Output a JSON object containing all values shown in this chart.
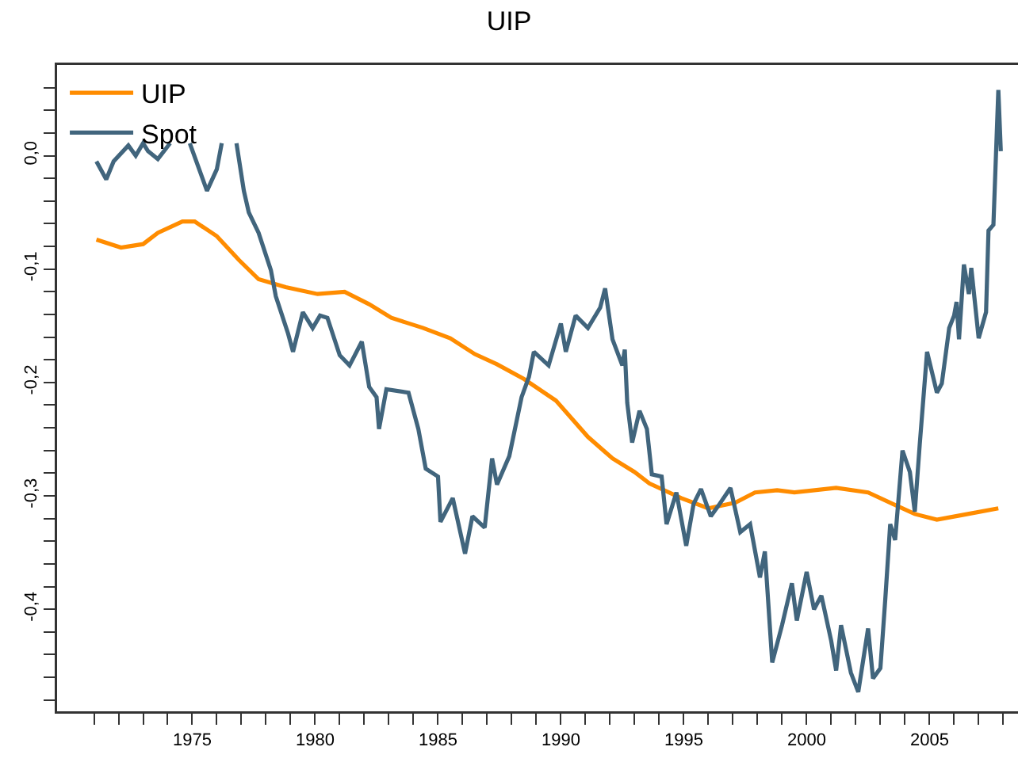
{
  "chart_data": {
    "type": "line",
    "title": "UIP",
    "xlim": [
      1969.5,
      2008.6
    ],
    "xticks": [
      {
        "value": 1971,
        "label": null
      },
      {
        "value": 1972,
        "label": null
      },
      {
        "value": 1973,
        "label": null
      },
      {
        "value": 1974,
        "label": null
      },
      1975,
      {
        "value": 1976,
        "label": null
      },
      {
        "value": 1977,
        "label": null
      },
      {
        "value": 1978,
        "label": null
      },
      {
        "value": 1979,
        "label": null
      },
      1980,
      {
        "value": 1981,
        "label": null
      },
      {
        "value": 1982,
        "label": null
      },
      {
        "value": 1983,
        "label": null
      },
      {
        "value": 1984,
        "label": null
      },
      1985,
      {
        "value": 1986,
        "label": null
      },
      {
        "value": 1987,
        "label": null
      },
      {
        "value": 1988,
        "label": null
      },
      {
        "value": 1989,
        "label": null
      },
      1990,
      {
        "value": 1991,
        "label": null
      },
      {
        "value": 1992,
        "label": null
      },
      {
        "value": 1993,
        "label": null
      },
      {
        "value": 1994,
        "label": null
      },
      1995,
      {
        "value": 1996,
        "label": null
      },
      {
        "value": 1997,
        "label": null
      },
      {
        "value": 1998,
        "label": null
      },
      {
        "value": 1999,
        "label": null
      },
      2000,
      {
        "value": 2001,
        "label": null
      },
      {
        "value": 2002,
        "label": null
      },
      {
        "value": 2003,
        "label": null
      },
      {
        "value": 2004,
        "label": null
      },
      2005,
      {
        "value": 2006,
        "label": null
      },
      {
        "value": 2007,
        "label": null
      },
      {
        "value": 2008,
        "label": null
      }
    ],
    "ylim": [
      -0.49,
      0.08
    ],
    "yticks": [
      {
        "value": -0.48,
        "label": null
      },
      {
        "value": -0.46,
        "label": null
      },
      {
        "value": -0.44,
        "label": null
      },
      {
        "value": -0.42,
        "label": null
      },
      {
        "value": -0.4,
        "label": "-0,4"
      },
      {
        "value": -0.38,
        "label": null
      },
      {
        "value": -0.36,
        "label": null
      },
      {
        "value": -0.34,
        "label": null
      },
      {
        "value": -0.32,
        "label": null
      },
      {
        "value": -0.3,
        "label": "-0,3"
      },
      {
        "value": -0.28,
        "label": null
      },
      {
        "value": -0.26,
        "label": null
      },
      {
        "value": -0.24,
        "label": null
      },
      {
        "value": -0.22,
        "label": null
      },
      {
        "value": -0.2,
        "label": "-0,2"
      },
      {
        "value": -0.18,
        "label": null
      },
      {
        "value": -0.16,
        "label": null
      },
      {
        "value": -0.14,
        "label": null
      },
      {
        "value": -0.12,
        "label": null
      },
      {
        "value": -0.1,
        "label": "-0,1"
      },
      {
        "value": -0.08,
        "label": null
      },
      {
        "value": -0.06,
        "label": null
      },
      {
        "value": -0.04,
        "label": null
      },
      {
        "value": -0.02,
        "label": null
      },
      {
        "value": 0,
        "label": "0,0"
      },
      {
        "value": 0.02,
        "label": null
      },
      {
        "value": 0.04,
        "label": null
      },
      {
        "value": 0.06,
        "label": null
      }
    ],
    "grid": false,
    "legend": "top left",
    "marker": "none",
    "line_style": "solid",
    "series": [
      {
        "name": "UIP",
        "color": "#ff8c00",
        "x": [
          1971.1,
          1972.1,
          1973.0,
          1973.6,
          1974.6,
          1975.1,
          1976.0,
          1976.9,
          1977.7,
          1978.8,
          1980.1,
          1981.2,
          1982.2,
          1983.1,
          1984.4,
          1985.5,
          1986.5,
          1987.4,
          1988.5,
          1989.8,
          1991.1,
          1992.1,
          1993.0,
          1993.6,
          1994.9,
          1996.0,
          1997.1,
          1997.9,
          1998.8,
          1999.5,
          2001.2,
          2002.5,
          2003.5,
          2004.4,
          2005.3,
          2006.3,
          2007.8
        ],
        "values": [
          -0.074,
          -0.081,
          -0.078,
          -0.068,
          -0.058,
          -0.058,
          -0.071,
          -0.092,
          -0.109,
          -0.116,
          -0.122,
          -0.12,
          -0.131,
          -0.143,
          -0.152,
          -0.161,
          -0.175,
          -0.184,
          -0.197,
          -0.216,
          -0.248,
          -0.267,
          -0.279,
          -0.289,
          -0.302,
          -0.311,
          -0.306,
          -0.297,
          -0.295,
          -0.297,
          -0.293,
          -0.297,
          -0.307,
          -0.316,
          -0.321,
          -0.317,
          -0.311
        ]
      },
      {
        "name": "Spot",
        "color": "#41657d",
        "x": [
          1971.1,
          1971.5,
          1971.8,
          1972.4,
          1972.7,
          1973.0,
          1973.2,
          1973.6,
          1974.1,
          1974.5,
          1974.9,
          1975.6,
          1976.0,
          1976.2,
          1976.5,
          1976.8,
          1977.1,
          1977.3,
          1977.7,
          1978.2,
          1978.4,
          1978.9,
          1979.1,
          1979.5,
          1979.9,
          1980.2,
          1980.5,
          1981.0,
          1981.4,
          1981.9,
          1982.2,
          1982.5,
          1982.6,
          1982.9,
          1983.8,
          1984.2,
          1984.5,
          1985.0,
          1985.1,
          1985.6,
          1986.1,
          1986.4,
          1986.9,
          1987.2,
          1987.4,
          1987.9,
          1988.4,
          1988.7,
          1988.9,
          1989.5,
          1990.0,
          1990.2,
          1990.6,
          1991.1,
          1991.6,
          1991.8,
          1992.1,
          1992.5,
          1992.6,
          1992.7,
          1992.9,
          1993.2,
          1993.5,
          1993.7,
          1994.1,
          1994.3,
          1994.7,
          1995.1,
          1995.4,
          1995.7,
          1996.1,
          1996.4,
          1996.9,
          1997.3,
          1997.7,
          1998.1,
          1998.3,
          1998.6,
          1999.0,
          1999.4,
          1999.6,
          2000.0,
          2000.3,
          2000.6,
          2001.0,
          2001.2,
          2001.4,
          2001.8,
          2002.1,
          2002.5,
          2002.7,
          2003.0,
          2003.2,
          2003.4,
          2003.6,
          2003.9,
          2004.2,
          2004.4,
          2004.6,
          2004.9,
          2005.3,
          2005.5,
          2005.8,
          2006.0,
          2006.1,
          2006.2,
          2006.4,
          2006.6,
          2006.7,
          2007.0,
          2007.3,
          2007.4,
          2007.6,
          2007.8,
          2007.9
        ],
        "values": [
          -0.005,
          -0.021,
          -0.005,
          0.009,
          0.0,
          0.011,
          0.004,
          -0.003,
          0.011,
          null,
          0.011,
          -0.031,
          -0.012,
          0.011,
          null,
          0.011,
          -0.031,
          -0.05,
          -0.068,
          -0.101,
          -0.124,
          -0.157,
          -0.173,
          -0.138,
          -0.152,
          -0.141,
          -0.143,
          -0.176,
          -0.185,
          -0.164,
          -0.204,
          -0.213,
          -0.241,
          -0.206,
          -0.209,
          -0.241,
          -0.276,
          -0.283,
          -0.323,
          -0.302,
          -0.351,
          -0.318,
          -0.328,
          -0.267,
          -0.29,
          -0.265,
          -0.213,
          -0.195,
          -0.173,
          -0.185,
          -0.148,
          -0.173,
          -0.141,
          -0.152,
          -0.134,
          -0.117,
          -0.162,
          -0.185,
          -0.171,
          -0.218,
          -0.253,
          -0.225,
          -0.241,
          -0.281,
          -0.283,
          -0.325,
          -0.297,
          -0.344,
          -0.307,
          -0.294,
          -0.318,
          -0.309,
          -0.293,
          -0.332,
          -0.325,
          -0.372,
          -0.349,
          -0.447,
          -0.414,
          -0.377,
          -0.41,
          -0.367,
          -0.4,
          -0.388,
          -0.428,
          -0.454,
          -0.414,
          -0.456,
          -0.473,
          -0.417,
          -0.461,
          -0.452,
          -0.391,
          -0.325,
          -0.339,
          -0.26,
          -0.279,
          -0.314,
          -0.255,
          -0.173,
          -0.209,
          -0.201,
          -0.152,
          -0.141,
          -0.129,
          -0.162,
          -0.096,
          -0.122,
          -0.099,
          -0.161,
          -0.138,
          -0.066,
          -0.061,
          0.058,
          0.004
        ]
      }
    ]
  }
}
